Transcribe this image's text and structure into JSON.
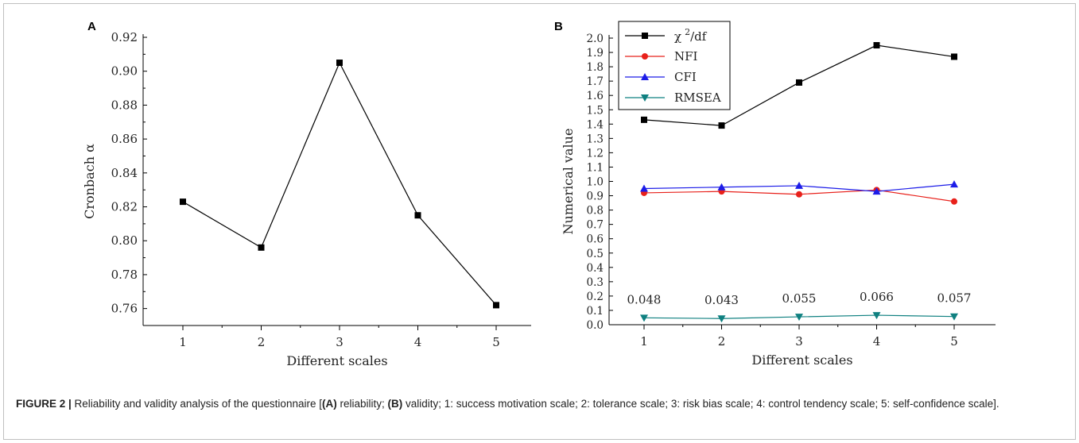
{
  "chart_data": [
    {
      "panel": "A",
      "type": "line",
      "xlabel": "Different scales",
      "ylabel": "Cronbach α",
      "x": [
        1,
        2,
        3,
        4,
        5
      ],
      "xticks": [
        "1",
        "2",
        "3",
        "4",
        "5"
      ],
      "ylim": [
        0.75,
        0.92
      ],
      "yticks": [
        "0.76",
        "0.78",
        "0.80",
        "0.82",
        "0.84",
        "0.86",
        "0.88",
        "0.90",
        "0.92"
      ],
      "series": [
        {
          "values": [
            0.823,
            0.796,
            0.905,
            0.815,
            0.762
          ],
          "color": "#000000",
          "marker": "square"
        }
      ],
      "grid": false
    },
    {
      "panel": "B",
      "type": "line",
      "xlabel": "Different scales",
      "ylabel": "Numerical value",
      "x": [
        1,
        2,
        3,
        4,
        5
      ],
      "xticks": [
        "1",
        "2",
        "3",
        "4",
        "5"
      ],
      "ylim": [
        0.0,
        2.0
      ],
      "yticks": [
        "0.0",
        "0.1",
        "0.2",
        "0.3",
        "0.4",
        "0.5",
        "0.6",
        "0.7",
        "0.8",
        "0.9",
        "1.0",
        "1.1",
        "1.2",
        "1.3",
        "1.4",
        "1.5",
        "1.6",
        "1.7",
        "1.8",
        "1.9",
        "2.0"
      ],
      "legend_position": "top-left",
      "series": [
        {
          "name": "χ²/df",
          "values": [
            1.43,
            1.39,
            1.69,
            1.95,
            1.87
          ],
          "color": "#000000",
          "marker": "square"
        },
        {
          "name": "NFI",
          "values": [
            0.92,
            0.93,
            0.91,
            0.94,
            0.86
          ],
          "color": "#e8201a",
          "marker": "circle"
        },
        {
          "name": "CFI",
          "values": [
            0.95,
            0.96,
            0.97,
            0.93,
            0.98
          ],
          "color": "#1c1ce8",
          "marker": "triangle-up"
        },
        {
          "name": "RMSEA",
          "values": [
            0.048,
            0.043,
            0.055,
            0.066,
            0.057
          ],
          "color": "#0f8080",
          "marker": "triangle-down"
        }
      ],
      "annotations": [
        "0.048",
        "0.043",
        "0.055",
        "0.066",
        "0.057"
      ],
      "grid": false
    }
  ],
  "panels": {
    "a_letter": "A",
    "b_letter": "B"
  },
  "legend": {
    "chi_base": "χ",
    "chi_sup": "2",
    "chi_tail": "/df"
  },
  "caption": {
    "lead": "FIGURE 2 |",
    "t1": " Reliability and validity analysis of the questionnaire [",
    "b1": "(A)",
    "t2": " reliability; ",
    "b2": "(B)",
    "t3": " validity; 1: success motivation scale; 2: tolerance scale; 3: risk bias scale; 4: control tendency scale; 5: self-confidence scale]."
  }
}
